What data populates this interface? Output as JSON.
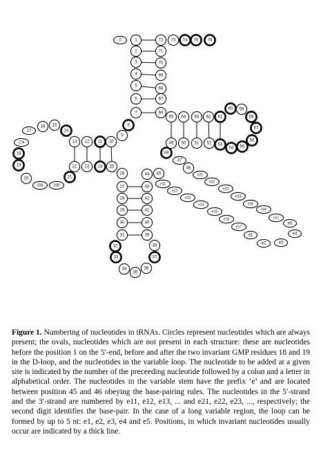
{
  "caption": {
    "label": "Figure 1.",
    "text": "Numbering of nucleotides in tRNAs. Circles represent nucleotides which are always present; the ovals, nucleotides which are not present in each structure: these are nucleotides before the position 1 on the 5′-end, before and after the two invariant GMP residues 18 and 19 in the D-loop, and the nucleotides in the variable loop. The nucleotide to be added at a given site is indicated by the number of the preceeding nucleotide followed by a colon and a letter in alphabetical order. The nucleotides in the variable stem have the prefix ‘e’ and are located between position 45 and 46 obeying the base-pairing rules. The nucleotides in the 5′-strand and the 3′-strand are numbered by e11, e12, e13, ... and e21, e22, e23, ..., respectively; the second digit identifies the base-pair. In the case of a long variable region, the loop can be formed by up to 5 nt: e1, e2, e3, e4 and e5. Positions, in which invariant nucleotides usually occur are indicated by a thick line."
  },
  "diagram": {
    "nucleotides": [
      {
        "label": "0",
        "shape": "oval",
        "thick": false
      },
      {
        "label": "1",
        "shape": "circle",
        "thick": false
      },
      {
        "label": "2",
        "shape": "circle",
        "thick": false
      },
      {
        "label": "3",
        "shape": "circle",
        "thick": false
      },
      {
        "label": "4",
        "shape": "circle",
        "thick": false
      },
      {
        "label": "5",
        "shape": "circle",
        "thick": false
      },
      {
        "label": "6",
        "shape": "circle",
        "thick": false
      },
      {
        "label": "7",
        "shape": "circle",
        "thick": false
      },
      {
        "label": "8",
        "shape": "circle",
        "thick": true
      },
      {
        "label": "9",
        "shape": "circle",
        "thick": false
      },
      {
        "label": "10",
        "shape": "circle",
        "thick": false
      },
      {
        "label": "11",
        "shape": "circle",
        "thick": true
      },
      {
        "label": "12",
        "shape": "circle",
        "thick": false
      },
      {
        "label": "13",
        "shape": "circle",
        "thick": false
      },
      {
        "label": "14",
        "shape": "circle",
        "thick": true
      },
      {
        "label": "15",
        "shape": "circle",
        "thick": false
      },
      {
        "label": "16",
        "shape": "circle",
        "thick": false
      },
      {
        "label": "17",
        "shape": "oval",
        "thick": false
      },
      {
        "label": "17A",
        "shape": "oval",
        "thick": false
      },
      {
        "label": "18",
        "shape": "circle",
        "thick": true
      },
      {
        "label": "19",
        "shape": "circle",
        "thick": true
      },
      {
        "label": "20",
        "shape": "circle",
        "thick": false
      },
      {
        "label": "20A",
        "shape": "oval",
        "thick": false
      },
      {
        "label": "20B",
        "shape": "oval",
        "thick": false
      },
      {
        "label": "21",
        "shape": "circle",
        "thick": true
      },
      {
        "label": "22",
        "shape": "circle",
        "thick": false
      },
      {
        "label": "23",
        "shape": "circle",
        "thick": false
      },
      {
        "label": "24",
        "shape": "circle",
        "thick": true
      },
      {
        "label": "25",
        "shape": "circle",
        "thick": false
      },
      {
        "label": "26",
        "shape": "circle",
        "thick": false
      },
      {
        "label": "27",
        "shape": "circle",
        "thick": false
      },
      {
        "label": "28",
        "shape": "circle",
        "thick": false
      },
      {
        "label": "29",
        "shape": "circle",
        "thick": false
      },
      {
        "label": "30",
        "shape": "circle",
        "thick": false
      },
      {
        "label": "31",
        "shape": "circle",
        "thick": false
      },
      {
        "label": "32",
        "shape": "circle",
        "thick": true
      },
      {
        "label": "33",
        "shape": "circle",
        "thick": true
      },
      {
        "label": "34",
        "shape": "circle",
        "thick": false
      },
      {
        "label": "35",
        "shape": "circle",
        "thick": false
      },
      {
        "label": "36",
        "shape": "circle",
        "thick": false
      },
      {
        "label": "37",
        "shape": "circle",
        "thick": true
      },
      {
        "label": "38",
        "shape": "circle",
        "thick": false
      },
      {
        "label": "39",
        "shape": "circle",
        "thick": false
      },
      {
        "label": "40",
        "shape": "circle",
        "thick": false
      },
      {
        "label": "41",
        "shape": "circle",
        "thick": false
      },
      {
        "label": "42",
        "shape": "circle",
        "thick": false
      },
      {
        "label": "43",
        "shape": "circle",
        "thick": false
      },
      {
        "label": "44",
        "shape": "circle",
        "thick": false
      },
      {
        "label": "45",
        "shape": "circle",
        "thick": false
      },
      {
        "label": "e11",
        "shape": "oval",
        "thick": false
      },
      {
        "label": "e12",
        "shape": "oval",
        "thick": false
      },
      {
        "label": "e13",
        "shape": "oval",
        "thick": false
      },
      {
        "label": "e14",
        "shape": "oval",
        "thick": false
      },
      {
        "label": "e15",
        "shape": "oval",
        "thick": false
      },
      {
        "label": "e16",
        "shape": "oval",
        "thick": false
      },
      {
        "label": "e17",
        "shape": "oval",
        "thick": false
      },
      {
        "label": "e1",
        "shape": "oval",
        "thick": false
      },
      {
        "label": "e2",
        "shape": "oval",
        "thick": false
      },
      {
        "label": "e3",
        "shape": "oval",
        "thick": false
      },
      {
        "label": "e4",
        "shape": "oval",
        "thick": false
      },
      {
        "label": "e5",
        "shape": "oval",
        "thick": false
      },
      {
        "label": "e27",
        "shape": "oval",
        "thick": false
      },
      {
        "label": "e26",
        "shape": "oval",
        "thick": false
      },
      {
        "label": "e25",
        "shape": "oval",
        "thick": false
      },
      {
        "label": "e24",
        "shape": "oval",
        "thick": false
      },
      {
        "label": "e23",
        "shape": "oval",
        "thick": false
      },
      {
        "label": "e22",
        "shape": "oval",
        "thick": false
      },
      {
        "label": "e21",
        "shape": "oval",
        "thick": false
      },
      {
        "label": "46",
        "shape": "circle",
        "thick": false
      },
      {
        "label": "47",
        "shape": "oval",
        "thick": false
      },
      {
        "label": "48",
        "shape": "circle",
        "thick": true
      },
      {
        "label": "49",
        "shape": "circle",
        "thick": false
      },
      {
        "label": "50",
        "shape": "circle",
        "thick": false
      },
      {
        "label": "51",
        "shape": "circle",
        "thick": false
      },
      {
        "label": "52",
        "shape": "circle",
        "thick": false
      },
      {
        "label": "53",
        "shape": "circle",
        "thick": true
      },
      {
        "label": "54",
        "shape": "circle",
        "thick": true
      },
      {
        "label": "55",
        "shape": "circle",
        "thick": true
      },
      {
        "label": "56",
        "shape": "circle",
        "thick": true
      },
      {
        "label": "57",
        "shape": "circle",
        "thick": true
      },
      {
        "label": "58",
        "shape": "circle",
        "thick": true
      },
      {
        "label": "59",
        "shape": "circle",
        "thick": false
      },
      {
        "label": "60",
        "shape": "circle",
        "thick": true
      },
      {
        "label": "61",
        "shape": "circle",
        "thick": true
      },
      {
        "label": "62",
        "shape": "circle",
        "thick": false
      },
      {
        "label": "63",
        "shape": "circle",
        "thick": false
      },
      {
        "label": "64",
        "shape": "circle",
        "thick": false
      },
      {
        "label": "65",
        "shape": "circle",
        "thick": false
      },
      {
        "label": "66",
        "shape": "circle",
        "thick": false
      },
      {
        "label": "67",
        "shape": "circle",
        "thick": false
      },
      {
        "label": "68",
        "shape": "circle",
        "thick": false
      },
      {
        "label": "69",
        "shape": "circle",
        "thick": false
      },
      {
        "label": "70",
        "shape": "circle",
        "thick": false
      },
      {
        "label": "71",
        "shape": "circle",
        "thick": false
      },
      {
        "label": "72",
        "shape": "circle",
        "thick": false
      },
      {
        "label": "73",
        "shape": "circle",
        "thick": false
      },
      {
        "label": "74",
        "shape": "circle",
        "thick": true
      },
      {
        "label": "75",
        "shape": "circle",
        "thick": true
      },
      {
        "label": "76",
        "shape": "circle",
        "thick": true
      }
    ]
  }
}
